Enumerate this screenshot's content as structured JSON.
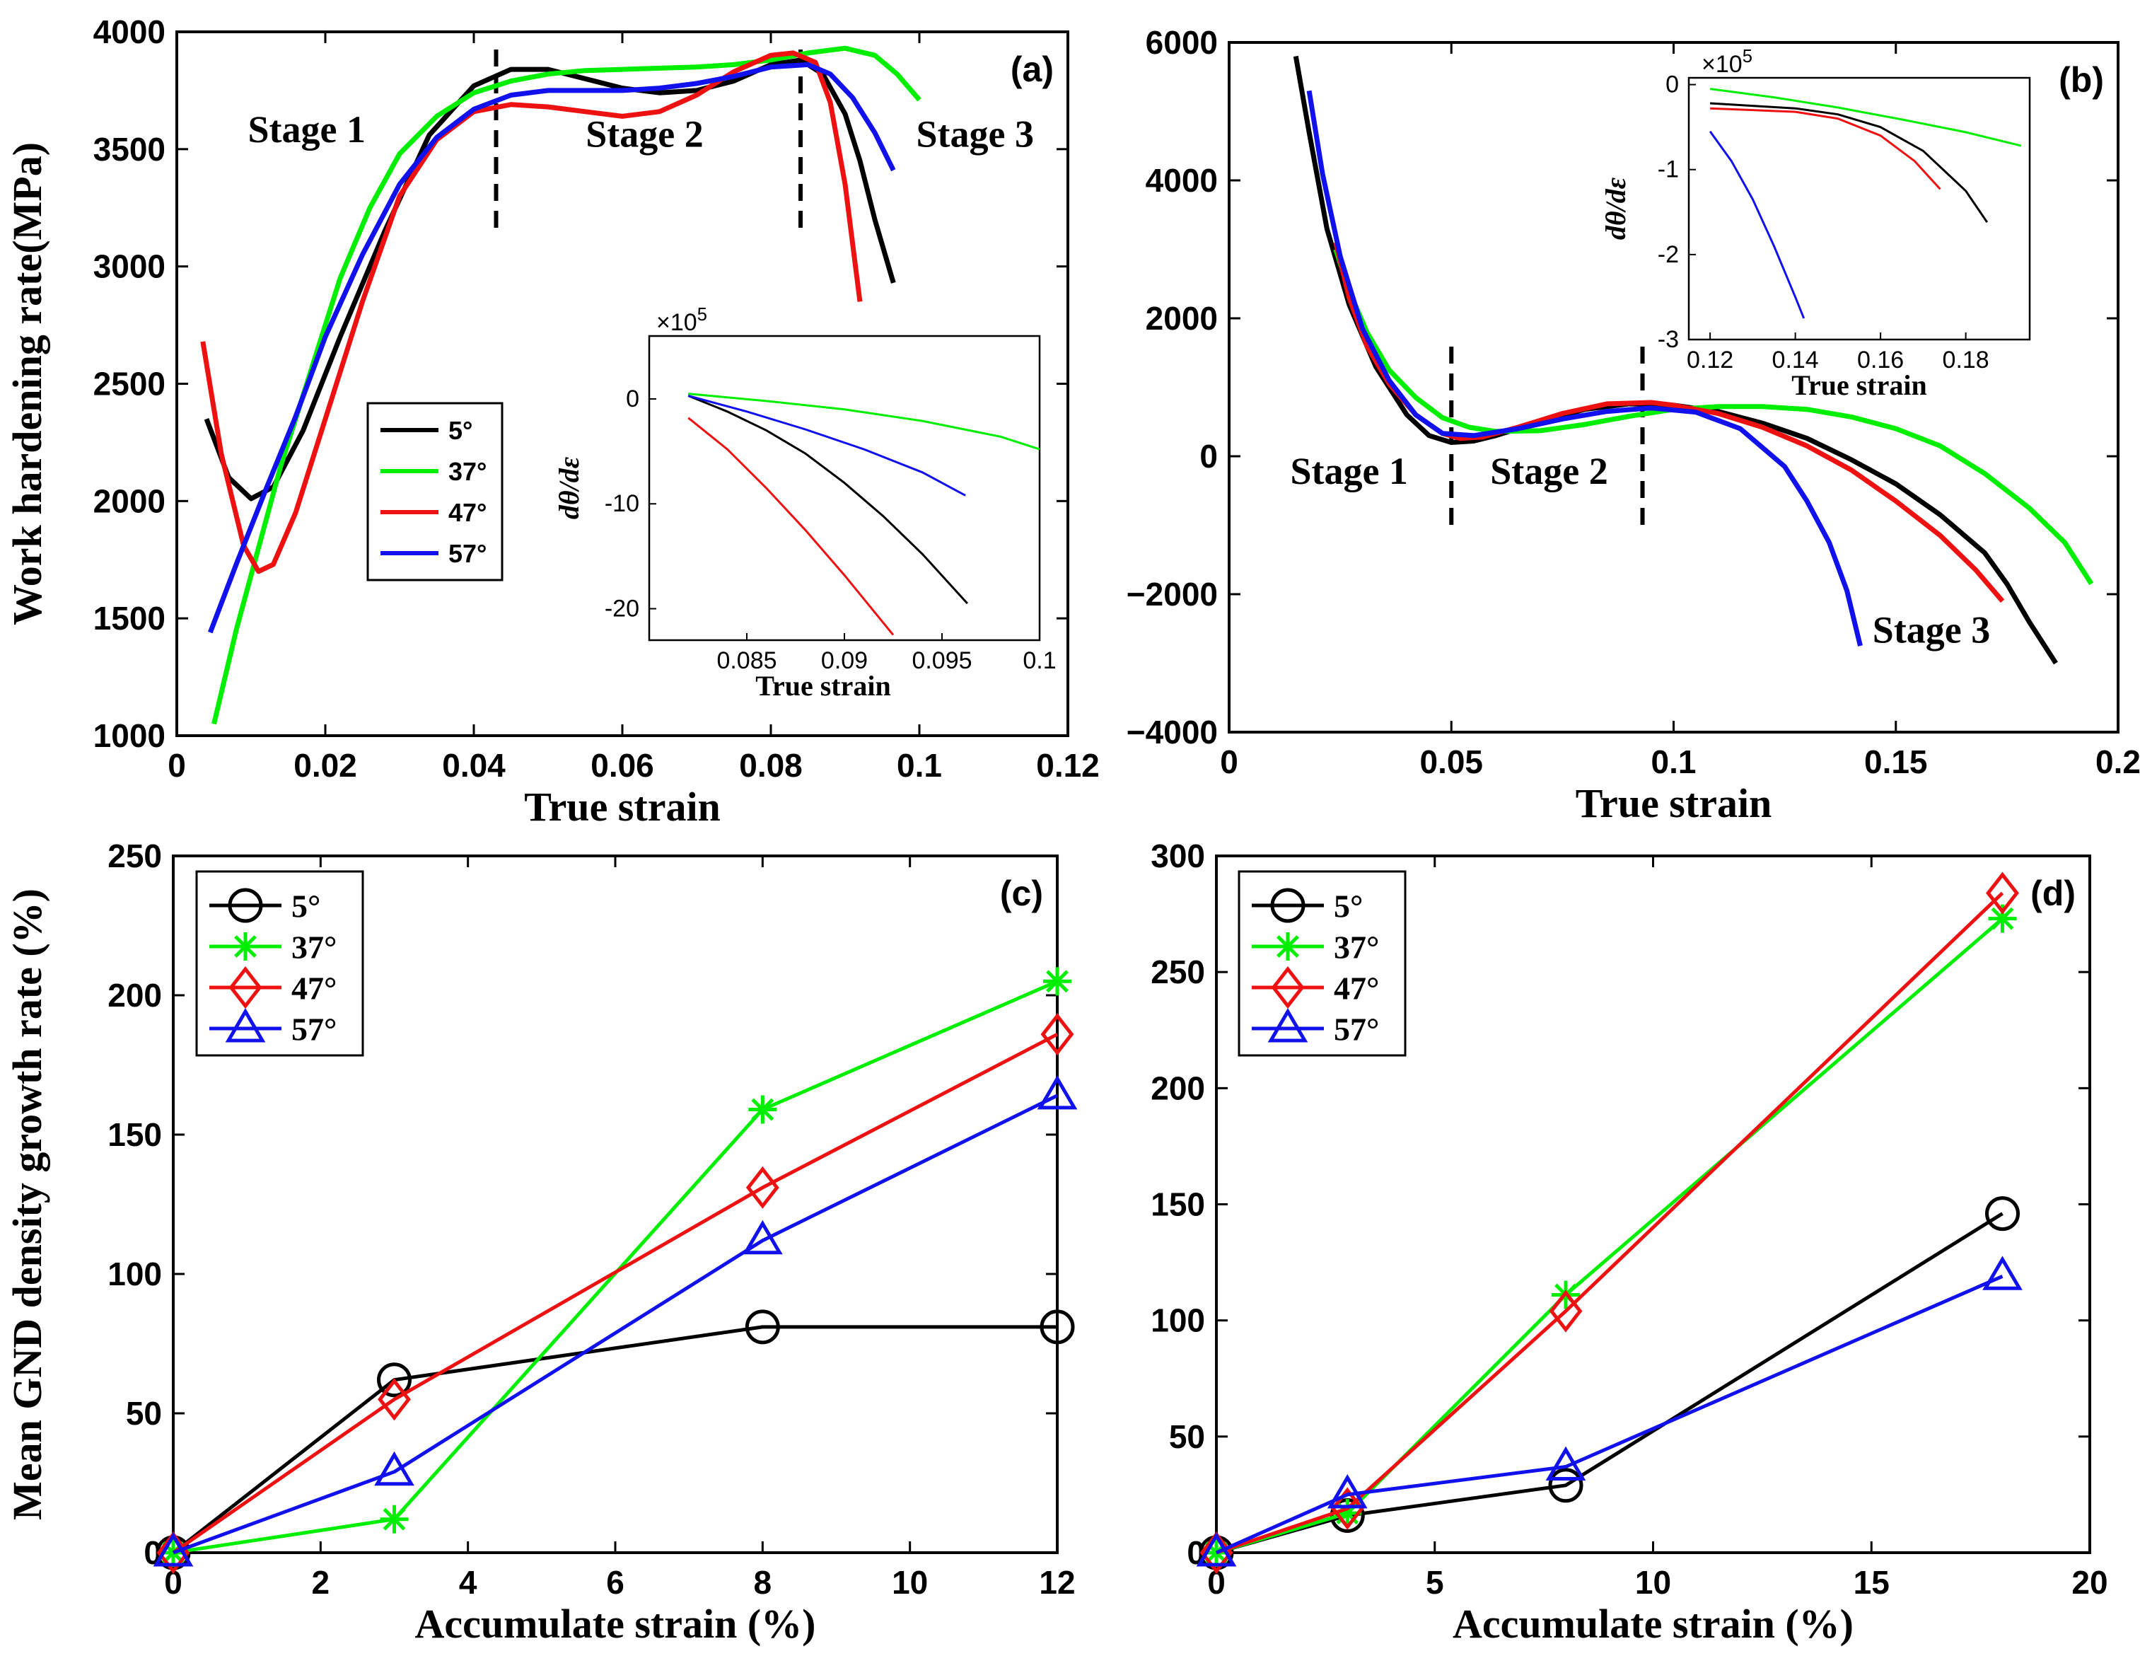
{
  "colors": {
    "5°": "#000000",
    "37°": "#00ee00",
    "47°": "#ee1111",
    "57°": "#1111ee"
  },
  "chart_data": [
    {
      "id": "a",
      "type": "line",
      "panel_label": "(a)",
      "xlabel": "True strain",
      "ylabel": "Work hardening rate(MPa)",
      "xlim": [
        0,
        0.12
      ],
      "ylim": [
        1000,
        4000
      ],
      "xticks": [
        0,
        0.02,
        0.04,
        0.06,
        0.08,
        0.1,
        0.12
      ],
      "xtick_labels": [
        "0",
        "0.02",
        "0.04",
        "0.06",
        "0.08",
        "0.1",
        "0.12"
      ],
      "yticks": [
        1000,
        1500,
        2000,
        2500,
        3000,
        3500,
        4000
      ],
      "ytick_labels": [
        "1000",
        "1500",
        "2000",
        "2500",
        "3000",
        "3500",
        "4000"
      ],
      "stage_lines": [
        0.043,
        0.084
      ],
      "annotations": [
        {
          "text": "Stage 1",
          "x": 0.0175,
          "y": 3530
        },
        {
          "text": "Stage 2",
          "x": 0.063,
          "y": 3510
        },
        {
          "text": "Stage 3",
          "x": 0.1075,
          "y": 3510
        }
      ],
      "legend": {
        "entries": [
          "5°",
          "37°",
          "47°",
          "57°"
        ],
        "placement": "lower-left"
      },
      "series": [
        {
          "name": "5°",
          "x": [
            0.004,
            0.007,
            0.01,
            0.013,
            0.017,
            0.022,
            0.028,
            0.034,
            0.04,
            0.045,
            0.05,
            0.055,
            0.06,
            0.065,
            0.07,
            0.075,
            0.08,
            0.084,
            0.087,
            0.09,
            0.092,
            0.094,
            0.0965
          ],
          "y": [
            2350,
            2100,
            2010,
            2060,
            2300,
            2700,
            3150,
            3560,
            3770,
            3840,
            3840,
            3800,
            3760,
            3740,
            3750,
            3790,
            3860,
            3880,
            3820,
            3650,
            3450,
            3200,
            2930
          ]
        },
        {
          "name": "37°",
          "x": [
            0.005,
            0.008,
            0.011,
            0.014,
            0.018,
            0.022,
            0.026,
            0.03,
            0.035,
            0.04,
            0.045,
            0.05,
            0.055,
            0.06,
            0.065,
            0.07,
            0.075,
            0.08,
            0.085,
            0.09,
            0.094,
            0.097,
            0.1
          ],
          "y": [
            1050,
            1450,
            1800,
            2150,
            2550,
            2950,
            3250,
            3480,
            3640,
            3740,
            3790,
            3820,
            3835,
            3840,
            3845,
            3850,
            3860,
            3880,
            3910,
            3930,
            3900,
            3820,
            3710
          ]
        },
        {
          "name": "47°",
          "x": [
            0.0035,
            0.006,
            0.009,
            0.011,
            0.013,
            0.016,
            0.02,
            0.025,
            0.03,
            0.035,
            0.04,
            0.045,
            0.05,
            0.055,
            0.06,
            0.065,
            0.07,
            0.075,
            0.08,
            0.083,
            0.086,
            0.088,
            0.09,
            0.092
          ],
          "y": [
            2680,
            2200,
            1810,
            1700,
            1730,
            1950,
            2350,
            2850,
            3300,
            3540,
            3660,
            3690,
            3680,
            3660,
            3640,
            3660,
            3730,
            3830,
            3900,
            3910,
            3870,
            3700,
            3350,
            2850
          ]
        },
        {
          "name": "57°",
          "x": [
            0.0045,
            0.008,
            0.012,
            0.016,
            0.02,
            0.025,
            0.03,
            0.035,
            0.04,
            0.045,
            0.05,
            0.055,
            0.06,
            0.065,
            0.07,
            0.075,
            0.08,
            0.085,
            0.088,
            0.091,
            0.094,
            0.0965
          ],
          "y": [
            1440,
            1730,
            2050,
            2360,
            2700,
            3050,
            3350,
            3550,
            3670,
            3730,
            3750,
            3750,
            3750,
            3760,
            3780,
            3810,
            3850,
            3860,
            3820,
            3720,
            3570,
            3410
          ]
        }
      ],
      "inset": {
        "xlabel": "True strain",
        "ylabel": "dθ/dε",
        "exponent": "×10",
        "exponent_power": "5",
        "xlim": [
          0.08,
          0.1
        ],
        "ylim": [
          -23,
          6
        ],
        "xticks": [
          0.085,
          0.09,
          0.095,
          0.1
        ],
        "xtick_labels": [
          "0.085",
          "0.09",
          "0.095",
          "0.1"
        ],
        "yticks": [
          0,
          -10,
          -20
        ],
        "ytick_labels": [
          "0",
          "-10",
          "-20"
        ],
        "series": [
          {
            "name": "5°",
            "x": [
              0.082,
              0.084,
              0.086,
              0.088,
              0.09,
              0.092,
              0.094,
              0.0963
            ],
            "y": [
              0.3,
              -1.2,
              -3,
              -5.2,
              -8,
              -11.2,
              -14.8,
              -19.5
            ]
          },
          {
            "name": "37°",
            "x": [
              0.082,
              0.086,
              0.09,
              0.094,
              0.098,
              0.1
            ],
            "y": [
              0.5,
              -0.2,
              -1,
              -2.1,
              -3.6,
              -4.8
            ]
          },
          {
            "name": "47°",
            "x": [
              0.082,
              0.084,
              0.086,
              0.088,
              0.09,
              0.0925
            ],
            "y": [
              -1.8,
              -4.8,
              -8.5,
              -12.5,
              -16.8,
              -22.5
            ]
          },
          {
            "name": "57°",
            "x": [
              0.082,
              0.085,
              0.088,
              0.091,
              0.094,
              0.0962
            ],
            "y": [
              0.3,
              -1.2,
              -2.9,
              -4.8,
              -7,
              -9.2
            ]
          }
        ]
      }
    },
    {
      "id": "b",
      "type": "line",
      "panel_label": "(b)",
      "xlabel": "True strain",
      "ylabel": "",
      "xlim": [
        0,
        0.2
      ],
      "ylim": [
        -4000,
        6000
      ],
      "xticks": [
        0,
        0.05,
        0.1,
        0.15,
        0.2
      ],
      "xtick_labels": [
        "0",
        "0.05",
        "0.1",
        "0.15",
        "0.2"
      ],
      "yticks": [
        -4000,
        -2000,
        0,
        2000,
        4000,
        6000
      ],
      "ytick_labels": [
        "−4000",
        "−2000",
        "0",
        "2000",
        "4000",
        "6000"
      ],
      "stage_lines": [
        0.05,
        0.093
      ],
      "annotations": [
        {
          "text": "Stage 1",
          "x": 0.027,
          "y": -400
        },
        {
          "text": "Stage 2",
          "x": 0.072,
          "y": -400
        },
        {
          "text": "Stage 3",
          "x": 0.158,
          "y": -2700
        }
      ],
      "series": [
        {
          "name": "5°",
          "x": [
            0.015,
            0.018,
            0.022,
            0.027,
            0.033,
            0.04,
            0.045,
            0.05,
            0.055,
            0.06,
            0.07,
            0.08,
            0.09,
            0.1,
            0.11,
            0.12,
            0.13,
            0.14,
            0.15,
            0.16,
            0.17,
            0.175,
            0.18,
            0.186
          ],
          "y": [
            5800,
            4700,
            3300,
            2200,
            1300,
            600,
            300,
            200,
            220,
            300,
            500,
            680,
            760,
            740,
            650,
            480,
            260,
            -50,
            -400,
            -850,
            -1400,
            -1850,
            -2400,
            -3000
          ]
        },
        {
          "name": "37°",
          "x": [
            0.024,
            0.027,
            0.031,
            0.036,
            0.042,
            0.048,
            0.054,
            0.06,
            0.07,
            0.08,
            0.09,
            0.1,
            0.11,
            0.12,
            0.13,
            0.14,
            0.15,
            0.16,
            0.17,
            0.18,
            0.188,
            0.194
          ],
          "y": [
            3000,
            2400,
            1800,
            1250,
            850,
            560,
            420,
            360,
            370,
            460,
            580,
            680,
            720,
            720,
            680,
            570,
            400,
            150,
            -250,
            -750,
            -1250,
            -1850
          ]
        },
        {
          "name": "47°",
          "x": [
            0.024,
            0.027,
            0.031,
            0.036,
            0.042,
            0.048,
            0.052,
            0.057,
            0.065,
            0.075,
            0.085,
            0.095,
            0.1,
            0.11,
            0.12,
            0.13,
            0.14,
            0.15,
            0.16,
            0.168,
            0.174
          ],
          "y": [
            3100,
            2300,
            1600,
            1050,
            600,
            330,
            260,
            280,
            420,
            620,
            760,
            780,
            740,
            620,
            420,
            150,
            -200,
            -650,
            -1150,
            -1650,
            -2100
          ]
        },
        {
          "name": "57°",
          "x": [
            0.018,
            0.021,
            0.025,
            0.03,
            0.036,
            0.042,
            0.048,
            0.055,
            0.065,
            0.075,
            0.085,
            0.095,
            0.105,
            0.115,
            0.125,
            0.13,
            0.135,
            0.139,
            0.142
          ],
          "y": [
            5300,
            4100,
            2900,
            1850,
            1100,
            600,
            330,
            300,
            400,
            540,
            650,
            700,
            640,
            400,
            -150,
            -650,
            -1250,
            -1950,
            -2750
          ]
        }
      ],
      "inset": {
        "xlabel": "True strain",
        "ylabel": "dθ/dε",
        "exponent": "×10",
        "exponent_power": "5",
        "xlim": [
          0.115,
          0.195
        ],
        "ylim": [
          -3,
          0.08
        ],
        "xticks": [
          0.12,
          0.14,
          0.16,
          0.18
        ],
        "xtick_labels": [
          "0.12",
          "0.14",
          "0.16",
          "0.18"
        ],
        "yticks": [
          0,
          -1,
          -2,
          -3
        ],
        "ytick_labels": [
          "0",
          "-1",
          "-2",
          "-3"
        ],
        "series": [
          {
            "name": "5°",
            "x": [
              0.12,
              0.13,
              0.14,
              0.15,
              0.16,
              0.17,
              0.18,
              0.185
            ],
            "y": [
              -0.22,
              -0.25,
              -0.28,
              -0.35,
              -0.5,
              -0.78,
              -1.25,
              -1.62
            ]
          },
          {
            "name": "37°",
            "x": [
              0.12,
              0.135,
              0.15,
              0.165,
              0.18,
              0.193
            ],
            "y": [
              -0.05,
              -0.15,
              -0.27,
              -0.41,
              -0.56,
              -0.72
            ]
          },
          {
            "name": "47°",
            "x": [
              0.12,
              0.13,
              0.14,
              0.15,
              0.16,
              0.168,
              0.174
            ],
            "y": [
              -0.28,
              -0.3,
              -0.32,
              -0.4,
              -0.6,
              -0.9,
              -1.23
            ]
          },
          {
            "name": "57°",
            "x": [
              0.12,
              0.125,
              0.13,
              0.135,
              0.14,
              0.142
            ],
            "y": [
              -0.55,
              -0.9,
              -1.35,
              -1.9,
              -2.5,
              -2.75
            ]
          }
        ]
      }
    },
    {
      "id": "c",
      "type": "line",
      "panel_label": "(c)",
      "xlabel": "Accumulate strain (%)",
      "ylabel": "Mean GND density growth rate (%)",
      "xlim": [
        0,
        12
      ],
      "ylim": [
        0,
        250
      ],
      "xticks": [
        0,
        2,
        4,
        6,
        8,
        10,
        12
      ],
      "xtick_labels": [
        "0",
        "2",
        "4",
        "6",
        "8",
        "10",
        "12"
      ],
      "yticks": [
        0,
        50,
        100,
        150,
        200,
        250
      ],
      "ytick_labels": [
        "0",
        "50",
        "100",
        "150",
        "200",
        "250"
      ],
      "legend": {
        "entries": [
          "5°",
          "37°",
          "47°",
          "57°"
        ],
        "placement": "top-left"
      },
      "series": [
        {
          "name": "5°",
          "marker": "circle",
          "x": [
            0,
            3,
            8,
            12
          ],
          "y": [
            0,
            62,
            81,
            81
          ]
        },
        {
          "name": "37°",
          "marker": "star",
          "x": [
            0,
            3,
            8,
            12
          ],
          "y": [
            0,
            12,
            159,
            205
          ]
        },
        {
          "name": "47°",
          "marker": "diamond",
          "x": [
            0,
            3,
            8,
            12
          ],
          "y": [
            0,
            55,
            131,
            186
          ]
        },
        {
          "name": "57°",
          "marker": "triangle",
          "x": [
            0,
            3,
            8,
            12
          ],
          "y": [
            0,
            29,
            112,
            164
          ]
        }
      ]
    },
    {
      "id": "d",
      "type": "line",
      "panel_label": "(d)",
      "xlabel": "Accumulate strain (%)",
      "ylabel": "",
      "xlim": [
        0,
        20
      ],
      "ylim": [
        0,
        300
      ],
      "xticks": [
        0,
        5,
        10,
        15,
        20
      ],
      "xtick_labels": [
        "0",
        "5",
        "10",
        "15",
        "20"
      ],
      "yticks": [
        0,
        50,
        100,
        150,
        200,
        250,
        300
      ],
      "ytick_labels": [
        "0",
        "50",
        "100",
        "150",
        "200",
        "250",
        "300"
      ],
      "legend": {
        "entries": [
          "5°",
          "37°",
          "47°",
          "57°"
        ],
        "placement": "top-left"
      },
      "series": [
        {
          "name": "5°",
          "marker": "circle",
          "x": [
            0,
            3,
            8,
            18
          ],
          "y": [
            0,
            16,
            29,
            146
          ]
        },
        {
          "name": "37°",
          "marker": "star",
          "x": [
            0,
            3,
            8,
            18
          ],
          "y": [
            0,
            17,
            111,
            273
          ]
        },
        {
          "name": "47°",
          "marker": "diamond",
          "x": [
            0,
            3,
            8,
            18
          ],
          "y": [
            0,
            19,
            104,
            284
          ]
        },
        {
          "name": "57°",
          "marker": "triangle",
          "x": [
            0,
            3,
            8,
            18
          ],
          "y": [
            0,
            25,
            37,
            119
          ]
        }
      ]
    }
  ]
}
